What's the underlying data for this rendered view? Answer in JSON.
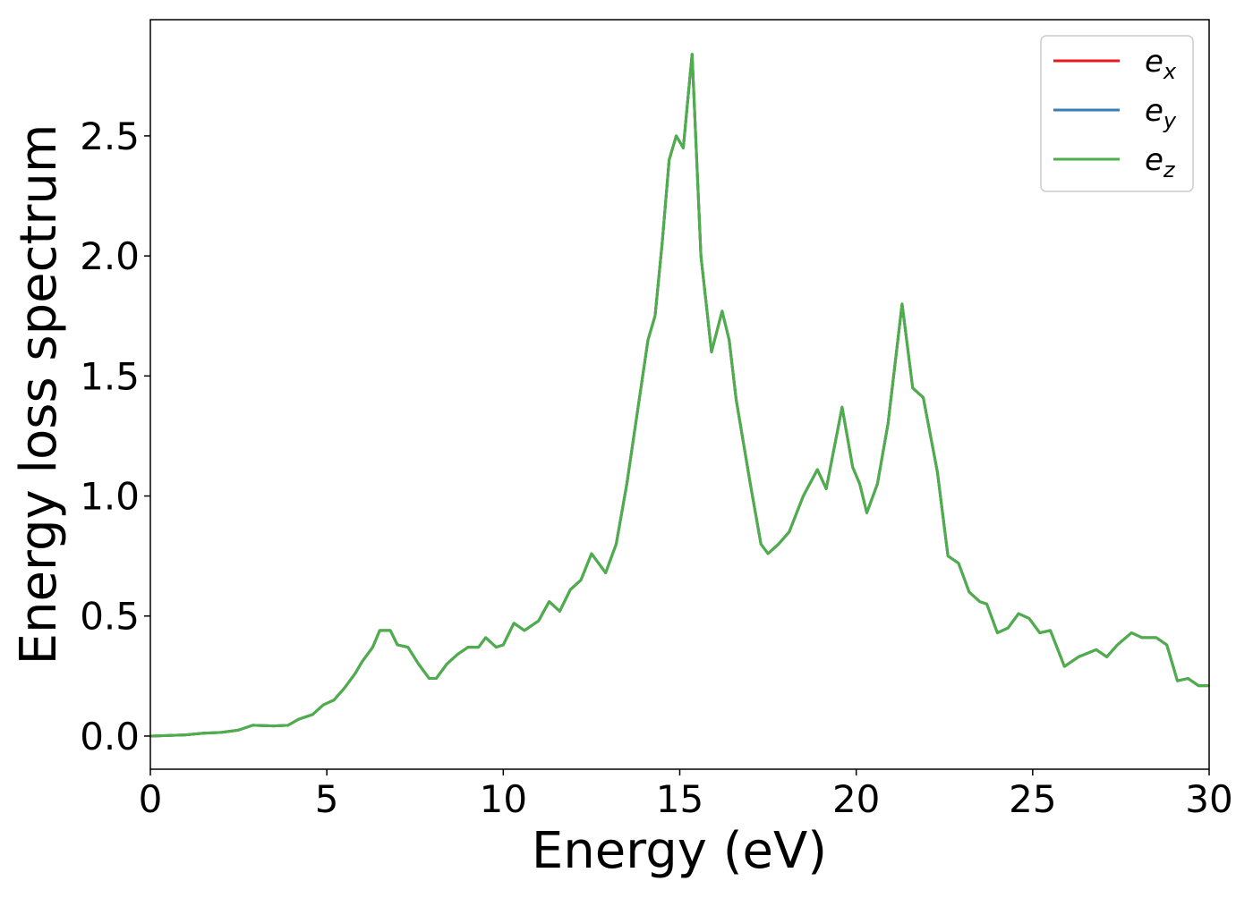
{
  "chart_data": {
    "type": "line",
    "xlabel": "Energy (eV)",
    "ylabel": "Energy loss spectrum",
    "x": [
      0,
      1,
      1.5,
      2,
      2.5,
      2.9,
      3.5,
      3.9,
      4.2,
      4.6,
      4.9,
      5.2,
      5.5,
      5.8,
      6.0,
      6.3,
      6.5,
      6.8,
      7.0,
      7.3,
      7.6,
      7.9,
      8.1,
      8.4,
      8.7,
      9.0,
      9.3,
      9.5,
      9.8,
      10.0,
      10.3,
      10.6,
      11.0,
      11.3,
      11.6,
      11.9,
      12.2,
      12.5,
      12.9,
      13.2,
      13.5,
      13.8,
      14.1,
      14.3,
      14.5,
      14.7,
      14.9,
      15.1,
      15.35,
      15.6,
      15.9,
      16.2,
      16.4,
      16.6,
      17.0,
      17.3,
      17.5,
      17.8,
      18.1,
      18.5,
      18.9,
      19.15,
      19.6,
      19.9,
      20.1,
      20.3,
      20.6,
      20.9,
      21.3,
      21.6,
      21.9,
      22.3,
      22.6,
      22.9,
      23.2,
      23.5,
      23.7,
      24.0,
      24.3,
      24.6,
      24.9,
      25.2,
      25.5,
      25.9,
      26.3,
      26.8,
      27.1,
      27.4,
      27.8,
      28.1,
      28.5,
      28.8,
      29.1,
      29.4,
      29.7,
      30.0
    ],
    "series": [
      {
        "name": "e_x",
        "color": "#e41a1c",
        "values": [
          0,
          0.005,
          0.012,
          0.015,
          0.025,
          0.045,
          0.042,
          0.045,
          0.07,
          0.09,
          0.13,
          0.15,
          0.2,
          0.26,
          0.31,
          0.37,
          0.44,
          0.44,
          0.38,
          0.37,
          0.3,
          0.24,
          0.24,
          0.3,
          0.34,
          0.37,
          0.37,
          0.41,
          0.37,
          0.38,
          0.47,
          0.44,
          0.48,
          0.56,
          0.52,
          0.61,
          0.65,
          0.76,
          0.68,
          0.8,
          1.05,
          1.35,
          1.65,
          1.75,
          2.05,
          2.4,
          2.5,
          2.45,
          2.84,
          2.0,
          1.6,
          1.77,
          1.65,
          1.4,
          1.05,
          0.8,
          0.76,
          0.8,
          0.85,
          1.0,
          1.11,
          1.03,
          1.37,
          1.12,
          1.05,
          0.93,
          1.05,
          1.3,
          1.8,
          1.45,
          1.41,
          1.1,
          0.75,
          0.72,
          0.6,
          0.56,
          0.55,
          0.43,
          0.45,
          0.51,
          0.49,
          0.43,
          0.44,
          0.29,
          0.33,
          0.36,
          0.33,
          0.38,
          0.43,
          0.41,
          0.41,
          0.38,
          0.23,
          0.24,
          0.21,
          0.21
        ]
      },
      {
        "name": "e_y",
        "color": "#377eb8",
        "values": [
          0,
          0.005,
          0.012,
          0.015,
          0.025,
          0.045,
          0.042,
          0.045,
          0.07,
          0.09,
          0.13,
          0.15,
          0.2,
          0.26,
          0.31,
          0.37,
          0.44,
          0.44,
          0.38,
          0.37,
          0.3,
          0.24,
          0.24,
          0.3,
          0.34,
          0.37,
          0.37,
          0.41,
          0.37,
          0.38,
          0.47,
          0.44,
          0.48,
          0.56,
          0.52,
          0.61,
          0.65,
          0.76,
          0.68,
          0.8,
          1.05,
          1.35,
          1.65,
          1.75,
          2.05,
          2.4,
          2.5,
          2.45,
          2.84,
          2.0,
          1.6,
          1.77,
          1.65,
          1.4,
          1.05,
          0.8,
          0.76,
          0.8,
          0.85,
          1.0,
          1.11,
          1.03,
          1.37,
          1.12,
          1.05,
          0.93,
          1.05,
          1.3,
          1.8,
          1.45,
          1.41,
          1.1,
          0.75,
          0.72,
          0.6,
          0.56,
          0.55,
          0.43,
          0.45,
          0.51,
          0.49,
          0.43,
          0.44,
          0.29,
          0.33,
          0.36,
          0.33,
          0.38,
          0.43,
          0.41,
          0.41,
          0.38,
          0.23,
          0.24,
          0.21,
          0.21
        ]
      },
      {
        "name": "e_z",
        "color": "#4daf4a",
        "values": [
          0,
          0.005,
          0.012,
          0.015,
          0.025,
          0.045,
          0.042,
          0.045,
          0.07,
          0.09,
          0.13,
          0.15,
          0.2,
          0.26,
          0.31,
          0.37,
          0.44,
          0.44,
          0.38,
          0.37,
          0.3,
          0.24,
          0.24,
          0.3,
          0.34,
          0.37,
          0.37,
          0.41,
          0.37,
          0.38,
          0.47,
          0.44,
          0.48,
          0.56,
          0.52,
          0.61,
          0.65,
          0.76,
          0.68,
          0.8,
          1.05,
          1.35,
          1.65,
          1.75,
          2.05,
          2.4,
          2.5,
          2.45,
          2.84,
          2.0,
          1.6,
          1.77,
          1.65,
          1.4,
          1.05,
          0.8,
          0.76,
          0.8,
          0.85,
          1.0,
          1.11,
          1.03,
          1.37,
          1.12,
          1.05,
          0.93,
          1.05,
          1.3,
          1.8,
          1.45,
          1.41,
          1.1,
          0.75,
          0.72,
          0.6,
          0.56,
          0.55,
          0.43,
          0.45,
          0.51,
          0.49,
          0.43,
          0.44,
          0.29,
          0.33,
          0.36,
          0.33,
          0.38,
          0.43,
          0.41,
          0.41,
          0.38,
          0.23,
          0.24,
          0.21,
          0.21
        ]
      }
    ],
    "xlim": [
      0,
      30
    ],
    "xticks": [
      0,
      5,
      10,
      15,
      20,
      25,
      30
    ],
    "ylim": [
      -0.138,
      2.984
    ],
    "yticks": [
      {
        "value": 0,
        "label": "0.0"
      },
      0.5,
      {
        "value": 1,
        "label": "1.0"
      },
      1.5,
      {
        "value": 2,
        "label": "2.0"
      },
      2.5
    ],
    "legend": "upper right",
    "grid": false
  }
}
